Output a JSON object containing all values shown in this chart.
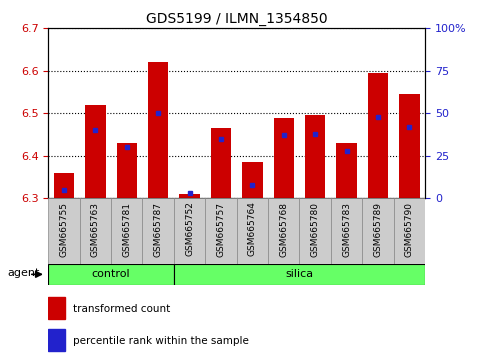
{
  "title": "GDS5199 / ILMN_1354850",
  "samples": [
    "GSM665755",
    "GSM665763",
    "GSM665781",
    "GSM665787",
    "GSM665752",
    "GSM665757",
    "GSM665764",
    "GSM665768",
    "GSM665780",
    "GSM665783",
    "GSM665789",
    "GSM665790"
  ],
  "red_values": [
    6.36,
    6.52,
    6.43,
    6.62,
    6.31,
    6.465,
    6.385,
    6.49,
    6.495,
    6.43,
    6.595,
    6.545
  ],
  "blue_percentiles": [
    5,
    40,
    30,
    50,
    3,
    35,
    8,
    37,
    38,
    28,
    48,
    42
  ],
  "ylim_left": [
    6.3,
    6.7
  ],
  "ylim_right": [
    0,
    100
  ],
  "yticks_left": [
    6.3,
    6.4,
    6.5,
    6.6,
    6.7
  ],
  "yticks_right": [
    0,
    25,
    50,
    75,
    100
  ],
  "ytick_labels_right": [
    "0",
    "25",
    "50",
    "75",
    "100%"
  ],
  "bar_color": "#cc0000",
  "blue_color": "#2222cc",
  "bar_base": 6.3,
  "bar_width": 0.65,
  "background_color": "#ffffff",
  "tick_label_color_left": "#cc0000",
  "tick_label_color_right": "#2222cc",
  "group_fill": "#66ff66",
  "group_edge": "#000000",
  "sample_bg": "#cccccc",
  "legend_items": [
    "transformed count",
    "percentile rank within the sample"
  ],
  "control_samples": 4,
  "silica_samples": 8
}
